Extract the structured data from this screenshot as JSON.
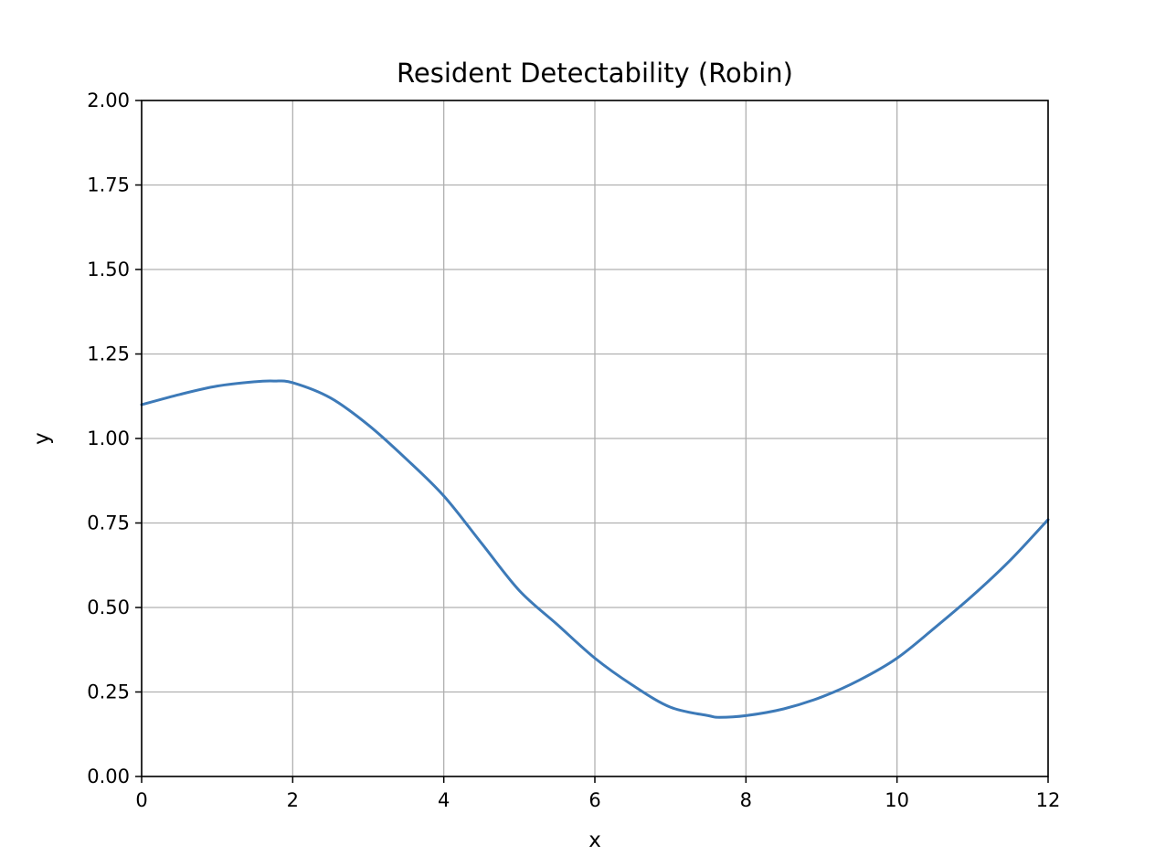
{
  "chart_data": {
    "type": "line",
    "title": "Resident Detectability (Robin)",
    "xlabel": "x",
    "ylabel": "y",
    "xlim": [
      0,
      12
    ],
    "ylim": [
      0,
      2
    ],
    "xticks": [
      0,
      2,
      4,
      6,
      8,
      10,
      12
    ],
    "xtick_labels": [
      "0",
      "2",
      "4",
      "6",
      "8",
      "10",
      "12"
    ],
    "yticks": [
      0,
      0.25,
      0.5,
      0.75,
      1.0,
      1.25,
      1.5,
      1.75,
      2.0
    ],
    "ytick_labels": [
      "0.00",
      "0.25",
      "0.50",
      "0.75",
      "1.00",
      "1.25",
      "1.50",
      "1.75",
      "2.00"
    ],
    "grid": true,
    "series": [
      {
        "color": "#3d7ab8",
        "x": [
          0,
          0.5,
          1.0,
          1.5,
          1.75,
          2.0,
          2.5,
          3.0,
          3.5,
          4.0,
          4.5,
          5.0,
          5.5,
          6.0,
          6.5,
          7.0,
          7.5,
          7.65,
          8.0,
          8.5,
          9.0,
          9.5,
          10.0,
          10.5,
          11.0,
          11.5,
          12.0
        ],
        "y": [
          1.1,
          1.13,
          1.155,
          1.168,
          1.17,
          1.165,
          1.12,
          1.04,
          0.94,
          0.83,
          0.69,
          0.55,
          0.45,
          0.35,
          0.27,
          0.205,
          0.18,
          0.175,
          0.18,
          0.2,
          0.235,
          0.285,
          0.35,
          0.44,
          0.535,
          0.64,
          0.76
        ]
      }
    ]
  }
}
